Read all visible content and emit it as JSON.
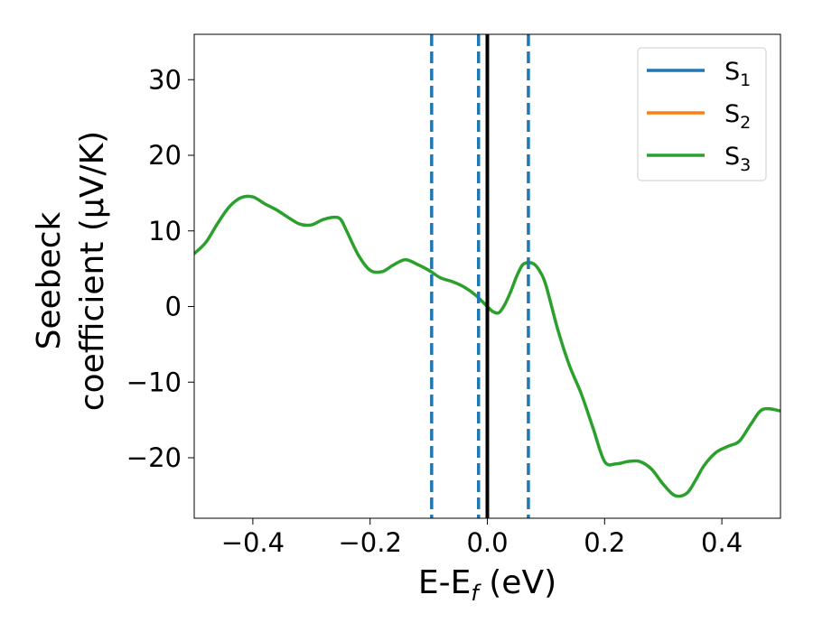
{
  "chart_data": {
    "type": "line",
    "xlabel": {
      "base": "E-E",
      "sub": "f",
      "suffix": " (eV)"
    },
    "ylabel": {
      "line1": "Seebeck",
      "line2": "coefficient  (μV/K)"
    },
    "xlim": [
      -0.5,
      0.5
    ],
    "ylim": [
      -28,
      36
    ],
    "xticks": [
      -0.4,
      -0.2,
      0.0,
      0.2,
      0.4
    ],
    "xtick_labels": [
      "−0.4",
      "−0.2",
      "0.0",
      "0.2",
      "0.4"
    ],
    "yticks": [
      -20,
      -10,
      0,
      10,
      20,
      30
    ],
    "ytick_labels": [
      "−20",
      "−10",
      "0",
      "10",
      "20",
      "30"
    ],
    "grid": false,
    "legend_position": "top-right",
    "series": [
      {
        "name": "S",
        "sub": "1",
        "color": "#1f77b4",
        "x": [],
        "y": []
      },
      {
        "name": "S",
        "sub": "2",
        "color": "#ff7f0e",
        "x": [],
        "y": []
      },
      {
        "name": "S",
        "sub": "3",
        "color": "#2ca02c",
        "x": [
          -0.5,
          -0.48,
          -0.46,
          -0.44,
          -0.42,
          -0.4,
          -0.38,
          -0.36,
          -0.34,
          -0.32,
          -0.3,
          -0.28,
          -0.26,
          -0.25,
          -0.24,
          -0.22,
          -0.2,
          -0.18,
          -0.16,
          -0.14,
          -0.12,
          -0.1,
          -0.08,
          -0.06,
          -0.04,
          -0.02,
          0.0,
          0.01,
          0.02,
          0.03,
          0.04,
          0.05,
          0.06,
          0.07,
          0.08,
          0.09,
          0.1,
          0.12,
          0.14,
          0.16,
          0.18,
          0.2,
          0.22,
          0.24,
          0.26,
          0.28,
          0.3,
          0.32,
          0.34,
          0.355,
          0.37,
          0.39,
          0.41,
          0.43,
          0.45,
          0.47,
          0.5
        ],
        "y": [
          7.0,
          8.5,
          11.0,
          13.2,
          14.4,
          14.5,
          13.6,
          12.8,
          11.8,
          10.9,
          10.8,
          11.5,
          11.8,
          11.5,
          10.0,
          6.8,
          4.8,
          4.6,
          5.5,
          6.2,
          5.6,
          4.8,
          3.8,
          3.3,
          2.6,
          1.5,
          0.0,
          -0.7,
          -0.8,
          0.3,
          2.0,
          4.0,
          5.5,
          5.8,
          5.6,
          4.6,
          2.8,
          -3.0,
          -7.8,
          -11.5,
          -16.0,
          -20.5,
          -20.8,
          -20.5,
          -20.5,
          -21.5,
          -23.5,
          -25.0,
          -24.7,
          -23.0,
          -21.0,
          -19.3,
          -18.5,
          -17.8,
          -15.5,
          -13.6,
          -13.8
        ]
      }
    ],
    "vlines": [
      {
        "x": -0.095,
        "color": "#1f77b4",
        "style": "dashed"
      },
      {
        "x": -0.015,
        "color": "#1f77b4",
        "style": "dashed"
      },
      {
        "x": 0.07,
        "color": "#1f77b4",
        "style": "dashed"
      },
      {
        "x": 0.0,
        "color": "#000000",
        "style": "solid"
      }
    ]
  }
}
